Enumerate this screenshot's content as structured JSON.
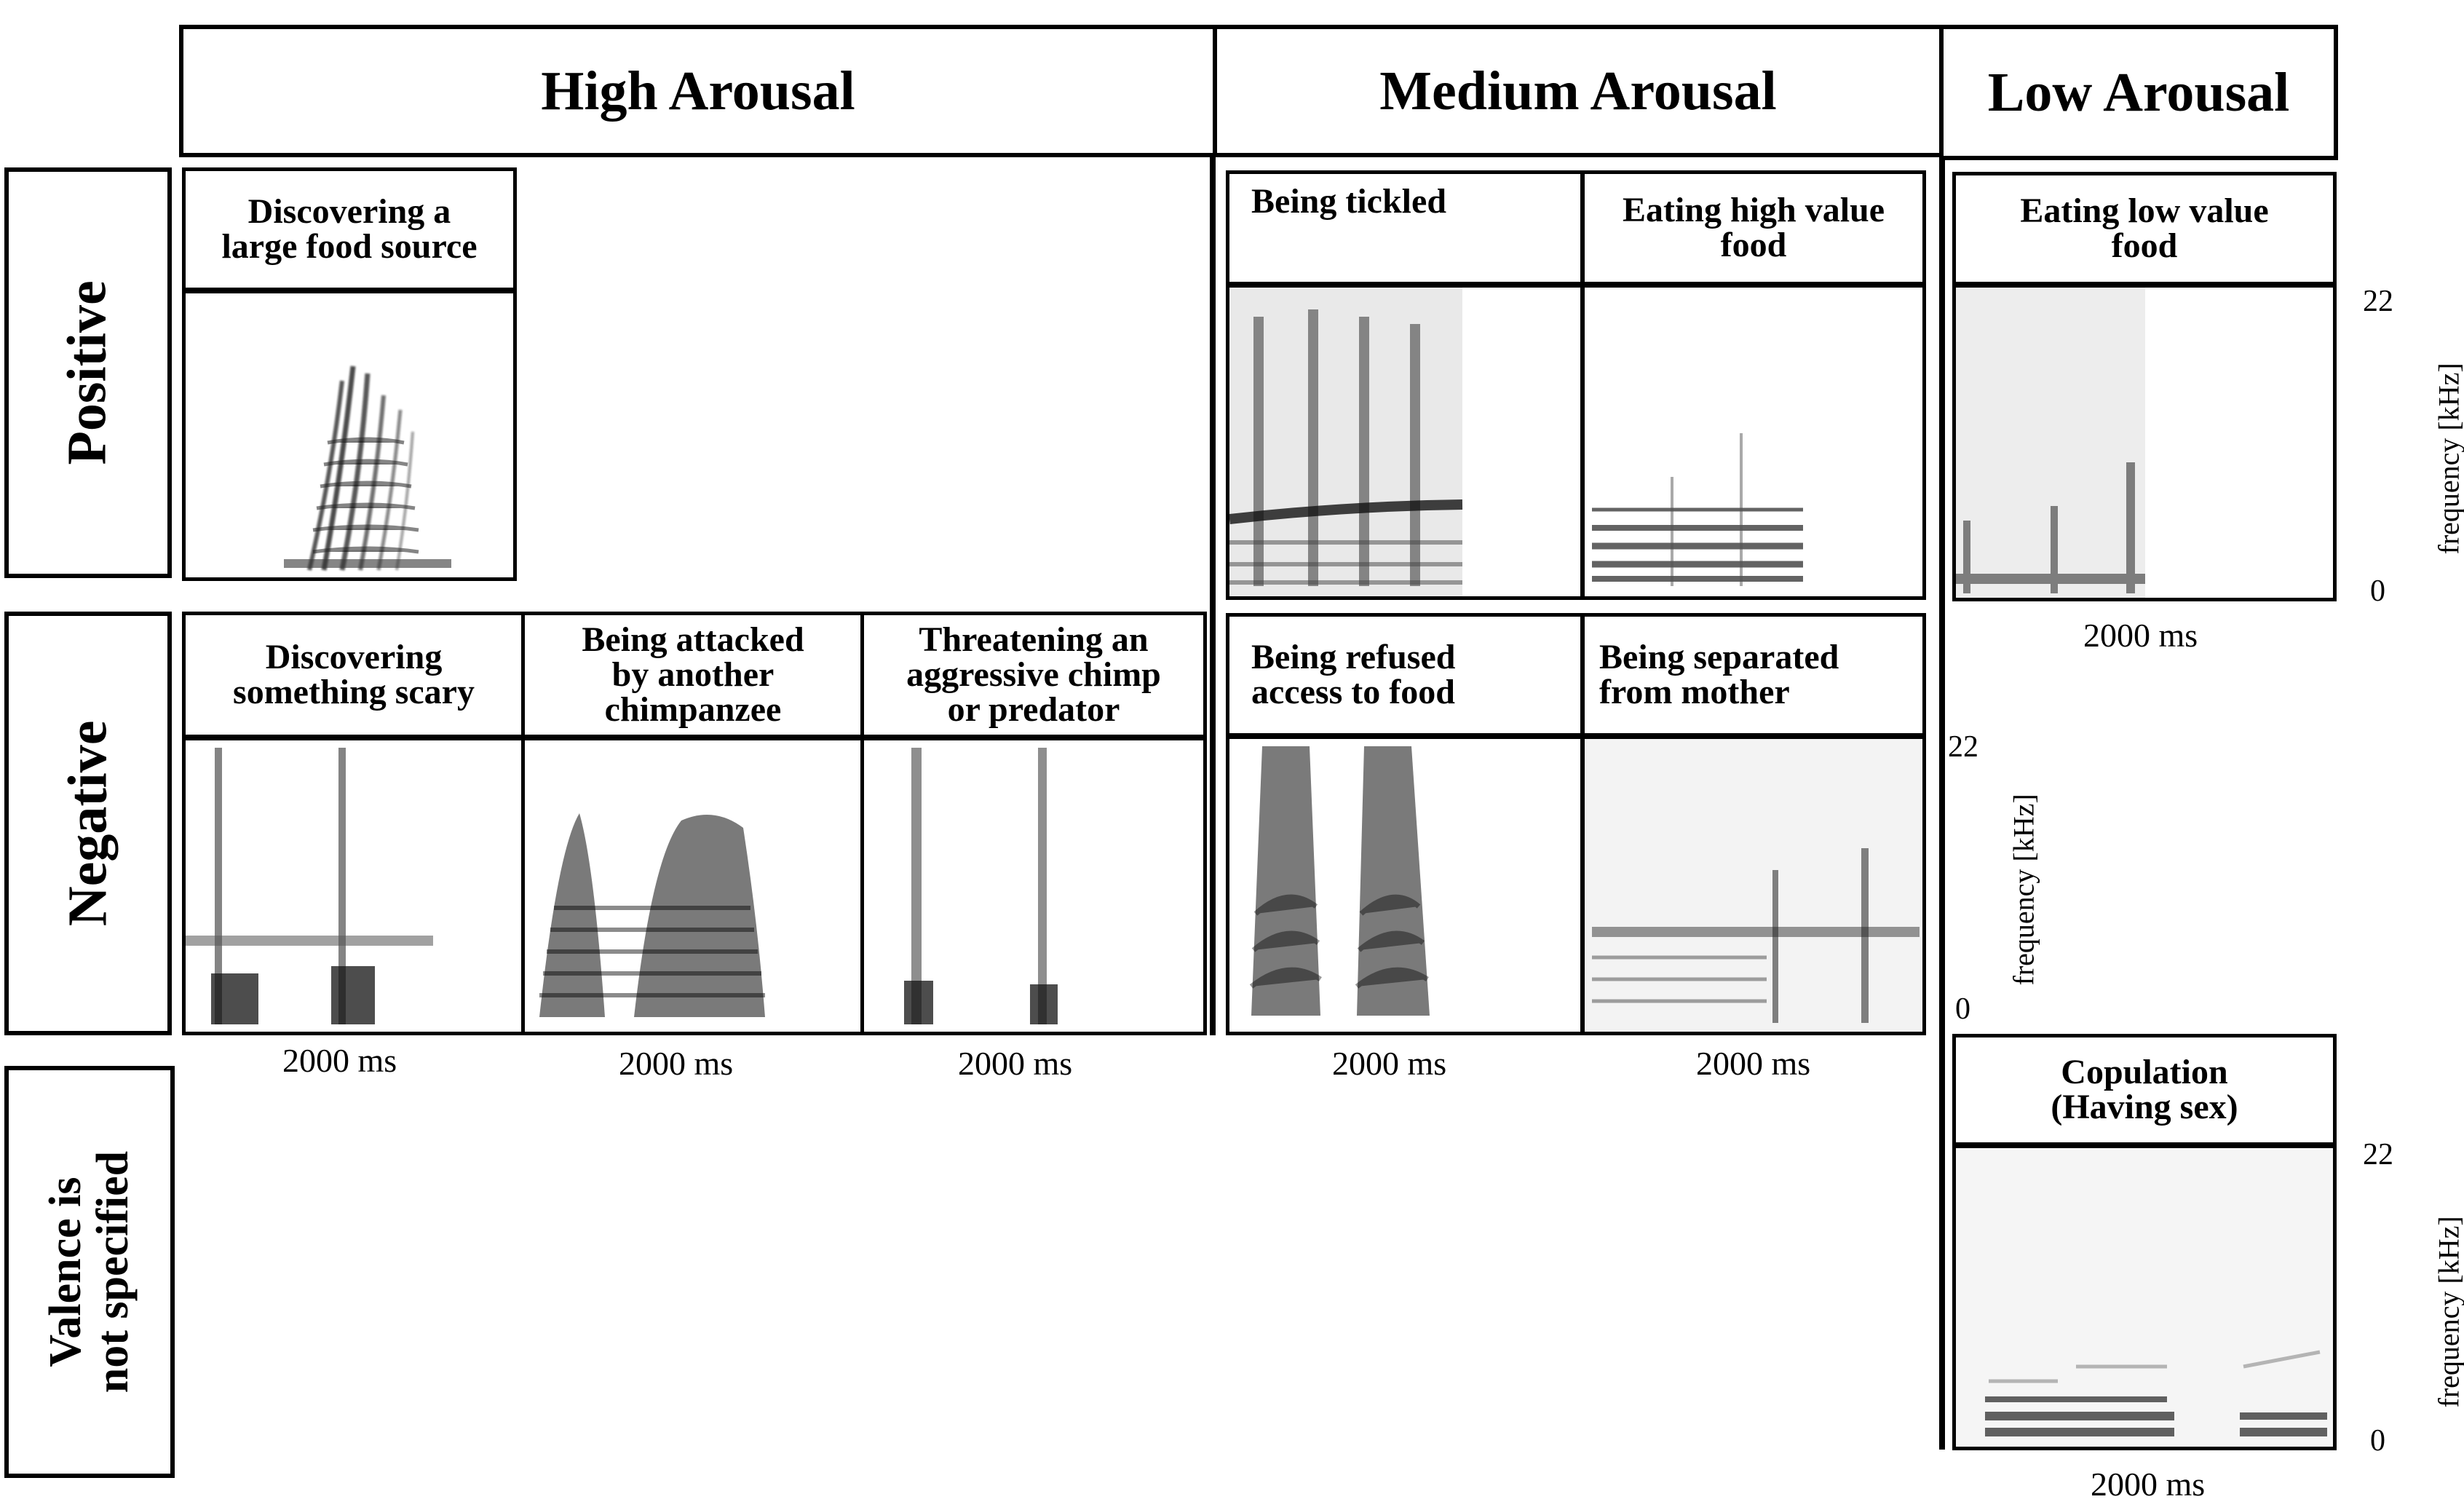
{
  "columns": {
    "high": "High Arousal",
    "medium": "Medium Arousal",
    "low": "Low Arousal"
  },
  "rows": {
    "positive": "Positive",
    "negative": "Negative",
    "unspecified_line1": "Valence is",
    "unspecified_line2": "not specified"
  },
  "cells": {
    "large_food": {
      "line1": "Discovering a",
      "line2": "large food source"
    },
    "tickled": {
      "line1": "Being tickled"
    },
    "high_value_food": {
      "line1": "Eating high value",
      "line2": "food"
    },
    "low_value_food": {
      "line1": "Eating low value",
      "line2": "food"
    },
    "scary": {
      "line1": "Discovering",
      "line2": "something scary"
    },
    "attacked": {
      "line1": "Being attacked",
      "line2": "by another",
      "line3": "chimpanzee"
    },
    "threatening": {
      "line1": "Threatening an",
      "line2": "aggressive chimp",
      "line3": "or predator"
    },
    "refused": {
      "line1": "Being refused",
      "line2": "access to food"
    },
    "separated": {
      "line1": "Being separated",
      "line2": "from mother"
    },
    "copulation": {
      "line1": "Copulation",
      "line2": "(Having sex)"
    }
  },
  "scale": {
    "duration": "2000 ms",
    "freq_max": "22",
    "freq_min": "0",
    "freq_label": "frequency [kHz]"
  }
}
